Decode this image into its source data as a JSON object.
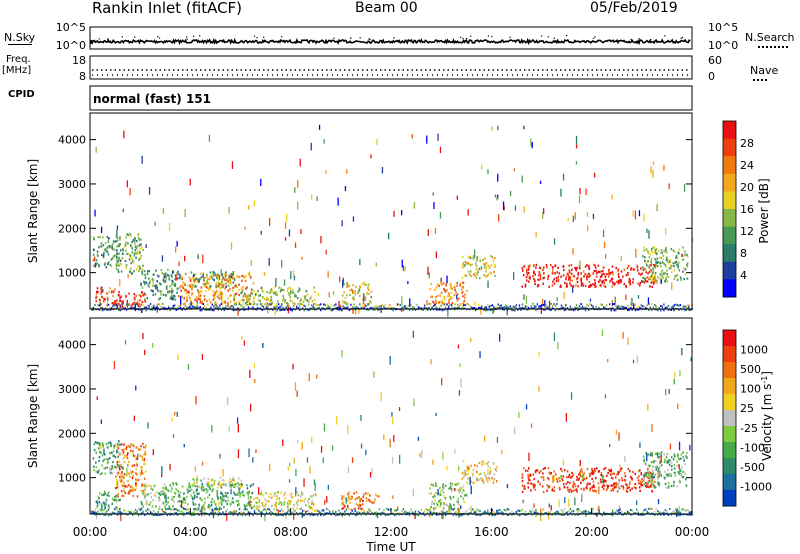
{
  "header": {
    "station": "Rankin Inlet (fitACF)",
    "beam": "Beam 00",
    "date": "05/Feb/2019"
  },
  "left_labels": {
    "nsky": "N.Sky",
    "freq_line1": "Freq.",
    "freq_line2": "[MHz]",
    "cpid": "CPID"
  },
  "right_labels": {
    "nsearch": "N.Search",
    "nave": "Nave"
  },
  "cpid_text": "normal (fast) 151",
  "chart_data": [
    {
      "type": "line",
      "title": "N.Sky / N.Search",
      "ylabel_left": "N.Sky",
      "ylabel_right": "N.Search",
      "y_ticks_left": [
        "10^5",
        "10^0"
      ],
      "y_ticks_right": [
        "10^5",
        "10^0"
      ],
      "xlim_hours": [
        0,
        24
      ],
      "series": [
        {
          "name": "N.Sky",
          "approx_level_log": 1.2
        },
        {
          "name": "N.Search",
          "approx_level_log": 1.5
        }
      ]
    },
    {
      "type": "line",
      "title": "Freq / Nave",
      "ylabel_left": "Freq. [MHz]",
      "ylabel_right": "Nave",
      "y_ticks_left": [
        "18",
        "8"
      ],
      "y_ticks_right": [
        "60",
        "0"
      ],
      "xlim_hours": [
        0,
        24
      ],
      "series": [
        {
          "name": "Freq",
          "approx_value_mhz": 10.4
        },
        {
          "name": "Nave",
          "approx_value": 21
        }
      ]
    },
    {
      "type": "heatmap",
      "panel": "power",
      "ylabel": "Slant Range [km]",
      "y_ticks": [
        "4000",
        "3000",
        "2000",
        "1000"
      ],
      "y_tick_values": [
        4000,
        3000,
        2000,
        1000
      ],
      "ylim": [
        180,
        4600
      ],
      "xlim_hours": [
        0,
        24
      ],
      "colorbar_label": "Power [dB]",
      "colorbar_ticks": [
        "28",
        "24",
        "20",
        "16",
        "12",
        "8",
        "4"
      ],
      "colorbar_colors": [
        "#0000ff",
        "#1e3f9e",
        "#2a7d6a",
        "#4a9a55",
        "#8ab848",
        "#e8d020",
        "#f2a818",
        "#f07a10",
        "#f04010",
        "#e81010"
      ],
      "regions": [
        {
          "t0": 0.1,
          "t1": 1.2,
          "r0": 1150,
          "r1": 1850,
          "level": 0.35
        },
        {
          "t0": 1.0,
          "t1": 2.1,
          "r0": 1000,
          "r1": 1900,
          "level": 0.4
        },
        {
          "t0": 0.2,
          "t1": 1.0,
          "r0": 300,
          "r1": 700,
          "level": 0.85
        },
        {
          "t0": 0.9,
          "t1": 2.2,
          "r0": 250,
          "r1": 600,
          "level": 0.95
        },
        {
          "t0": 2.0,
          "t1": 3.5,
          "r0": 400,
          "r1": 1100,
          "level": 0.3
        },
        {
          "t0": 3.5,
          "t1": 6.5,
          "r0": 300,
          "r1": 1000,
          "level": 0.7
        },
        {
          "t0": 4.0,
          "t1": 5.8,
          "r0": 700,
          "r1": 1050,
          "level": 0.35
        },
        {
          "t0": 6.0,
          "t1": 9.0,
          "r0": 300,
          "r1": 700,
          "level": 0.45
        },
        {
          "t0": 10.0,
          "t1": 11.2,
          "r0": 300,
          "r1": 800,
          "level": 0.55
        },
        {
          "t0": 13.5,
          "t1": 15.0,
          "r0": 300,
          "r1": 800,
          "level": 0.7
        },
        {
          "t0": 14.8,
          "t1": 16.2,
          "r0": 900,
          "r1": 1400,
          "level": 0.55
        },
        {
          "t0": 17.2,
          "t1": 22.5,
          "r0": 700,
          "r1": 1200,
          "level": 0.95
        },
        {
          "t0": 22.0,
          "t1": 23.8,
          "r0": 800,
          "r1": 1600,
          "level": 0.4
        }
      ]
    },
    {
      "type": "heatmap",
      "panel": "velocity",
      "ylabel": "Slant Range [km]",
      "y_ticks": [
        "4000",
        "3000",
        "2000",
        "1000"
      ],
      "y_tick_values": [
        4000,
        3000,
        2000,
        1000
      ],
      "ylim": [
        180,
        4600
      ],
      "xlim_hours": [
        0,
        24
      ],
      "x_ticks": [
        "00:00",
        "04:00",
        "08:00",
        "12:00",
        "16:00",
        "20:00",
        "00:00"
      ],
      "xlabel": "Time UT",
      "colorbar_label": "Velocity [m s-1]",
      "colorbar_ticks": [
        "1000",
        "500",
        "100",
        "25",
        "-25",
        "-100",
        "-500",
        "-1000"
      ],
      "colorbar_colors": [
        "#0040c0",
        "#1e6ea0",
        "#2f8a6a",
        "#48aa48",
        "#7ccc40",
        "#c0c0c0",
        "#f0d020",
        "#f0a818",
        "#f07010",
        "#f04010",
        "#e81010"
      ],
      "regions": [
        {
          "t0": 0.1,
          "t1": 1.2,
          "r0": 1100,
          "r1": 1850,
          "level": 0.3
        },
        {
          "t0": 1.0,
          "t1": 2.2,
          "r0": 600,
          "r1": 1800,
          "level": 0.75
        },
        {
          "t0": 0.2,
          "t1": 1.2,
          "r0": 300,
          "r1": 700,
          "level": 0.25
        },
        {
          "t0": 2.0,
          "t1": 3.5,
          "r0": 300,
          "r1": 900,
          "level": 0.4
        },
        {
          "t0": 3.5,
          "t1": 6.5,
          "r0": 300,
          "r1": 900,
          "level": 0.28
        },
        {
          "t0": 4.0,
          "t1": 6.0,
          "r0": 800,
          "r1": 1050,
          "level": 0.5
        },
        {
          "t0": 6.5,
          "t1": 9.0,
          "r0": 300,
          "r1": 700,
          "level": 0.55
        },
        {
          "t0": 10.0,
          "t1": 11.5,
          "r0": 300,
          "r1": 700,
          "level": 0.8
        },
        {
          "t0": 13.5,
          "t1": 15.0,
          "r0": 300,
          "r1": 900,
          "level": 0.45
        },
        {
          "t0": 14.8,
          "t1": 16.2,
          "r0": 900,
          "r1": 1400,
          "level": 0.6
        },
        {
          "t0": 17.2,
          "t1": 22.5,
          "r0": 700,
          "r1": 1250,
          "level": 0.9
        },
        {
          "t0": 22.0,
          "t1": 23.8,
          "r0": 800,
          "r1": 1600,
          "level": 0.35
        }
      ]
    }
  ]
}
